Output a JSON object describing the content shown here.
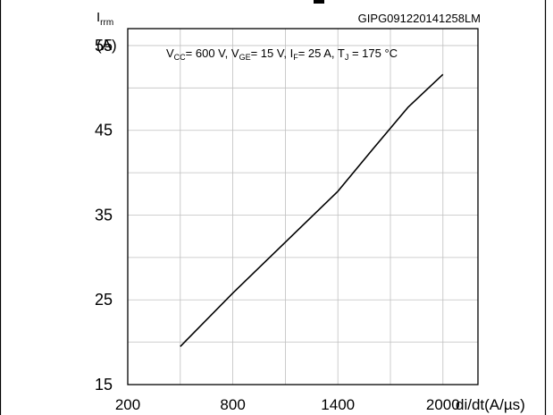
{
  "chart_data": {
    "type": "line",
    "figure_id": "GIPG091220141258LM",
    "conditions": {
      "vcc": "V",
      "vcc_sub": "CC",
      "vcc_val": "= 600 V, ",
      "vge": "V",
      "vge_sub": "GE",
      "vge_val": "= 15 V, ",
      "if_label": "I",
      "if_sub": "F",
      "if_val": "= 25 A, ",
      "tj": "T",
      "tj_sub": "J",
      "tj_val": " = 175 °C"
    },
    "ylabel": "I",
    "ylabel_sub": "rrm",
    "yunit": "(A)",
    "xlabel": "di/dt(A/µs)",
    "xlim": [
      200,
      2200
    ],
    "ylim": [
      15,
      57
    ],
    "xticks": [
      200,
      800,
      1400,
      2000
    ],
    "yticks": [
      15,
      25,
      35,
      45,
      55
    ],
    "x_gridlines": [
      200,
      500,
      800,
      1100,
      1400,
      1700,
      2000,
      2200
    ],
    "y_gridlines": [
      15,
      20,
      25,
      30,
      35,
      40,
      45,
      50,
      55
    ],
    "grid": true,
    "series": [
      {
        "x": [
          500,
          800,
          1100,
          1400,
          1600,
          1800,
          2000
        ],
        "y": [
          19.5,
          25.8,
          31.8,
          37.8,
          42.8,
          47.7,
          51.6
        ]
      }
    ],
    "colors": {
      "line": "#000000",
      "grid": "#c0c0c0",
      "frame": "#000000"
    }
  }
}
